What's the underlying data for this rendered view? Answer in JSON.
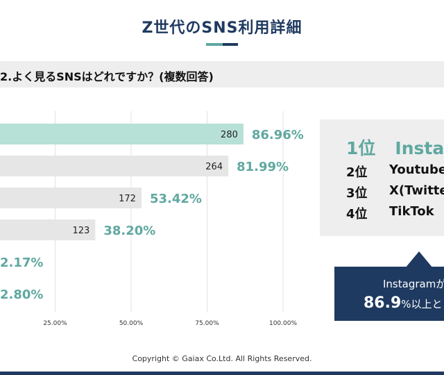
{
  "title": "Z世代のSNS利用詳細",
  "question": "2.よく見るSNSはどれですか？(複数回答)",
  "chart_data": {
    "type": "bar",
    "orientation": "horizontal",
    "xlim": [
      0,
      100
    ],
    "xticks": [
      "25.00%",
      "50.00%",
      "75.00%",
      "100.00%"
    ],
    "bars": [
      {
        "count": 280,
        "count_label": "280",
        "percent": 86.96,
        "percent_label": "86.96%",
        "highlight": true
      },
      {
        "count": 264,
        "count_label": "264",
        "percent": 81.99,
        "percent_label": "81.99%",
        "highlight": false
      },
      {
        "count": 172,
        "count_label": "172",
        "percent": 53.42,
        "percent_label": "53.42%",
        "highlight": false
      },
      {
        "count": 123,
        "count_label": "123",
        "percent": 38.2,
        "percent_label": "38.20%",
        "highlight": false
      },
      {
        "count": null,
        "count_label": "",
        "percent": 2.17,
        "percent_label": "2.17%",
        "highlight": false
      },
      {
        "count": null,
        "count_label": "",
        "percent": 2.8,
        "percent_label": "2.80%",
        "highlight": false
      }
    ]
  },
  "ranking": {
    "first": {
      "rank": "1位",
      "app": "Instag"
    },
    "others": [
      {
        "rank": "2位",
        "app": "Youtube"
      },
      {
        "rank": "3位",
        "app": "X(Twitte"
      },
      {
        "rank": "4位",
        "app": "TikTok"
      }
    ]
  },
  "callout": {
    "line1": "Instagramが",
    "value": "86.9",
    "suffix": "%以上と"
  },
  "copyright": "Copyright © Gaiax Co.Ltd. All Rights Reserved.",
  "colors": {
    "navy": "#1f3a60",
    "teal": "#5fa8a0",
    "highlight_bar": "#b7e0d6",
    "bar": "#e6e6e6"
  }
}
